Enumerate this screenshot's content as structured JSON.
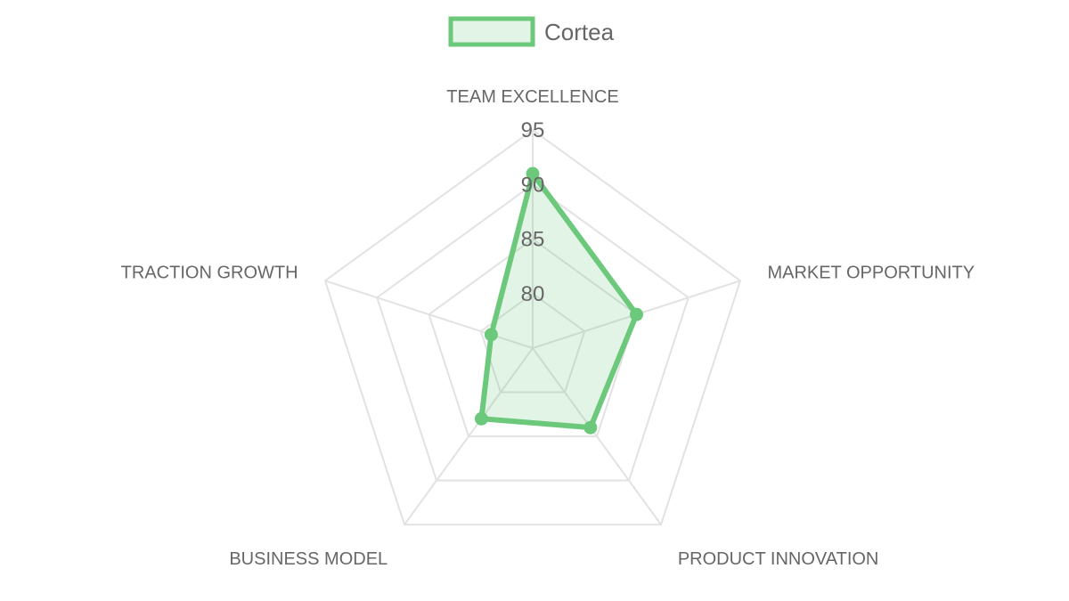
{
  "chart_data": {
    "type": "radar",
    "axes": [
      "TEAM EXCELLENCE",
      "MARKET OPPORTUNITY",
      "PRODUCT INNOVATION",
      "BUSINESS MODEL",
      "TRACTION GROWTH"
    ],
    "series": [
      {
        "name": "Cortea",
        "values": [
          91,
          85,
          84,
          83,
          79
        ],
        "color": "#6cc97c",
        "fill": "rgba(108, 201, 124, 0.2)"
      }
    ],
    "r_range": [
      75,
      95
    ],
    "ticks": [
      80,
      85,
      90,
      95
    ],
    "grid": true,
    "legend_position": "top"
  },
  "colors": {
    "grid": "#e2e2e2",
    "text": "#666666"
  }
}
